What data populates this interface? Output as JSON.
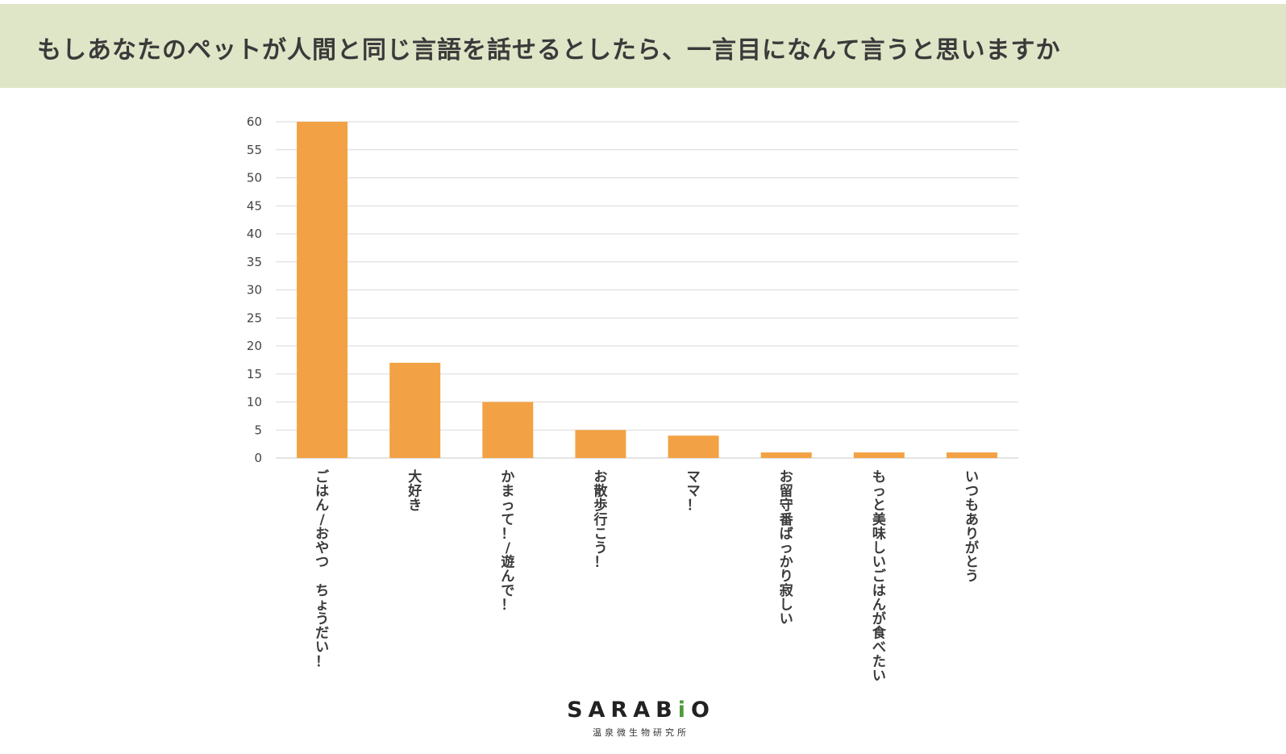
{
  "header": {
    "title": "もしあなたのペットが人間と同じ言語を話せるとしたら、一言目になんて言うと思いますか"
  },
  "chart_data": {
    "type": "bar",
    "title": "",
    "xlabel": "",
    "ylabel": "",
    "ylim": [
      0,
      60
    ],
    "yticks": [
      0,
      5,
      10,
      15,
      20,
      25,
      30,
      35,
      40,
      45,
      50,
      55,
      60
    ],
    "grid": true,
    "bar_color": "#f2a244",
    "categories": [
      "ごはん/おやつ ちょうだい！",
      "大好き",
      "かまって！/遊んで！",
      "お散歩行こう！",
      "ママ！",
      "お留守番ばっかり寂しい",
      "もっと美味しいごはんが食べたい",
      "いつもありがとう"
    ],
    "values": [
      60,
      17,
      10,
      5,
      4,
      1,
      1,
      1
    ]
  },
  "logo": {
    "name_prefix": "SARAB",
    "name_accent": "i",
    "name_suffix": "O",
    "subtitle": "温泉微生物研究所"
  }
}
